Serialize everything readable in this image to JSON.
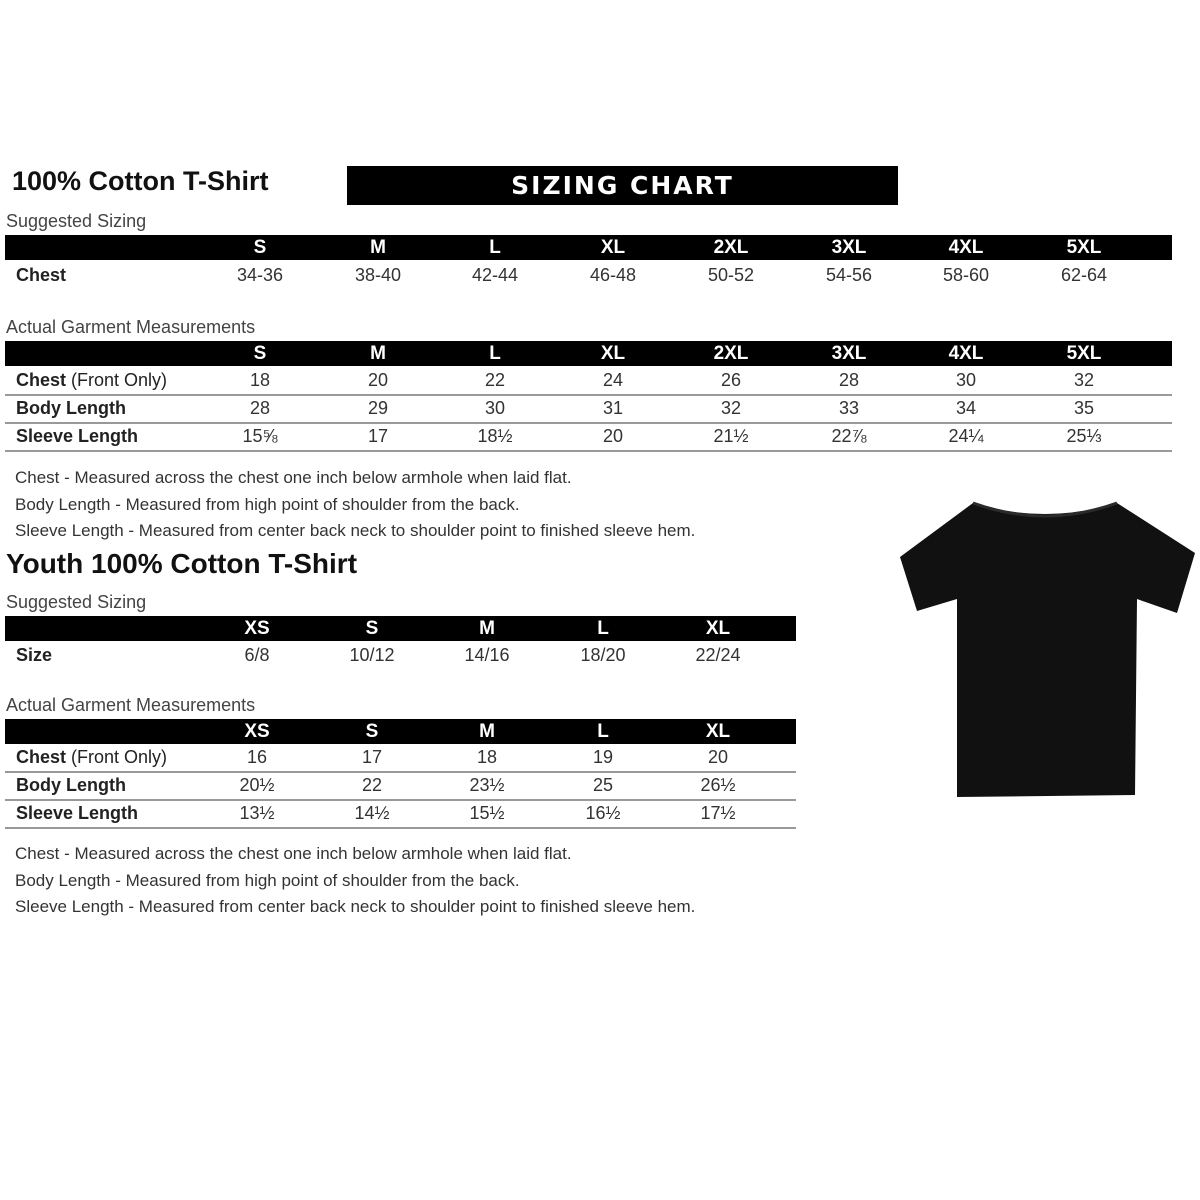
{
  "adult": {
    "title": "100% Cotton T-Shirt",
    "banner": "SIZING CHART",
    "suggested_label": "Suggested Sizing",
    "sizes": [
      "S",
      "M",
      "L",
      "XL",
      "2XL",
      "3XL",
      "4XL",
      "5XL"
    ],
    "suggested_rows": [
      {
        "label": "Chest",
        "values": [
          "34-36",
          "38-40",
          "42-44",
          "46-48",
          "50-52",
          "54-56",
          "58-60",
          "62-64"
        ]
      }
    ],
    "actual_label": "Actual Garment Measurements",
    "actual_rows": [
      {
        "label": "Chest",
        "suffix": " (Front Only)",
        "values": [
          "18",
          "20",
          "22",
          "24",
          "26",
          "28",
          "30",
          "32"
        ]
      },
      {
        "label": "Body Length",
        "suffix": "",
        "values": [
          "28",
          "29",
          "30",
          "31",
          "32",
          "33",
          "34",
          "35"
        ]
      },
      {
        "label": "Sleeve Length",
        "suffix": "",
        "values": [
          "15⅝",
          "17",
          "18½",
          "20",
          "21½",
          "22⅞",
          "24¼",
          "25⅓"
        ]
      }
    ],
    "notes": [
      "Chest - Measured across the chest one inch below armhole when laid flat.",
      "Body Length - Measured from high point of shoulder from the back.",
      "Sleeve Length - Measured from center back neck to shoulder point to finished sleeve hem."
    ]
  },
  "youth": {
    "title": "Youth 100% Cotton T-Shirt",
    "suggested_label": "Suggested Sizing",
    "sizes": [
      "XS",
      "S",
      "M",
      "L",
      "XL"
    ],
    "suggested_rows": [
      {
        "label": "Size",
        "values": [
          "6/8",
          "10/12",
          "14/16",
          "18/20",
          "22/24"
        ]
      }
    ],
    "actual_label": "Actual Garment Measurements",
    "actual_rows": [
      {
        "label": "Chest",
        "suffix": " (Front Only)",
        "values": [
          "16",
          "17",
          "18",
          "19",
          "20"
        ]
      },
      {
        "label": "Body Length",
        "suffix": "",
        "values": [
          "20½",
          "22",
          "23½",
          "25",
          "26½"
        ]
      },
      {
        "label": "Sleeve Length",
        "suffix": "",
        "values": [
          "13½",
          "14½",
          "15½",
          "16½",
          "17½"
        ]
      }
    ],
    "notes": [
      "Chest - Measured across the chest one inch below armhole when laid flat.",
      "Body Length - Measured from high point of shoulder from the back.",
      "Sleeve Length - Measured from center back neck to shoulder point to finished sleeve hem."
    ]
  },
  "image": {
    "name": "black-tshirt",
    "color": "#111111"
  }
}
